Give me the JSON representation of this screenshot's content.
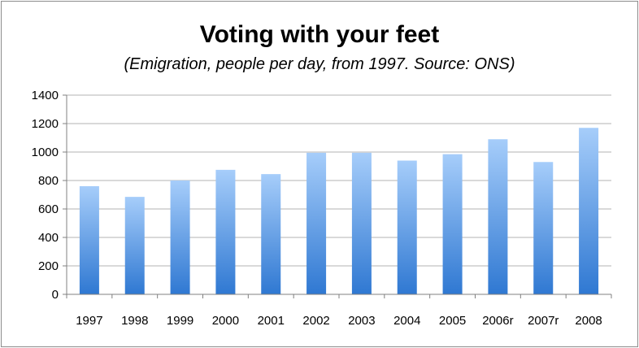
{
  "chart_data": {
    "type": "bar",
    "title": "Voting with your feet",
    "subtitle": "(Emigration, people per day, from 1997. Source: ONS)",
    "xlabel": "",
    "ylabel": "",
    "categories": [
      "1997",
      "1998",
      "1999",
      "2000",
      "2001",
      "2002",
      "2003",
      "2004",
      "2005",
      "2006r",
      "2007r",
      "2008"
    ],
    "values": [
      760,
      685,
      800,
      875,
      845,
      995,
      995,
      940,
      985,
      1090,
      930,
      1170
    ],
    "ylim": [
      0,
      1400
    ],
    "yticks": [
      0,
      200,
      400,
      600,
      800,
      1000,
      1200,
      1400
    ],
    "grid": true,
    "legend": "none",
    "colors": {
      "bar_top": "#a6cdfa",
      "bar_bottom": "#2f78d2",
      "grid": "#b3b3b3",
      "axis": "#808080"
    }
  }
}
